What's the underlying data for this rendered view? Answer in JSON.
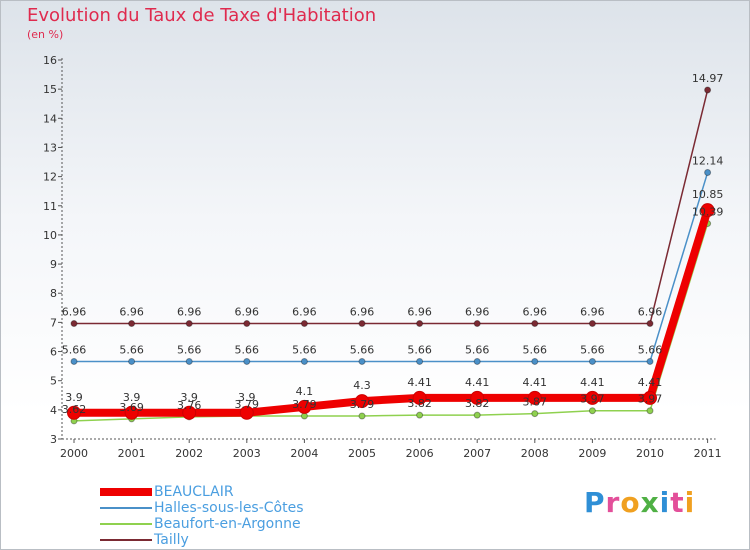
{
  "title": "Evolution du Taux de Taxe d'Habitation",
  "subtitle": "(en %)",
  "logo_text": "Proxiti",
  "chart_data": {
    "type": "line",
    "title": "Evolution du Taux de Taxe d'Habitation",
    "ylabel": "(en %)",
    "xlabel": "",
    "ylim": [
      3,
      16
    ],
    "yticks": [
      "3",
      "4",
      "5",
      "6",
      "7",
      "8",
      "9",
      "10",
      "11",
      "12",
      "13",
      "14",
      "15",
      "16"
    ],
    "categories": [
      "2000",
      "2001",
      "2002",
      "2003",
      "2004",
      "2005",
      "2006",
      "2007",
      "2008",
      "2009",
      "2010",
      "2011"
    ],
    "grid": false,
    "series": [
      {
        "name": "Tailly",
        "color": "#7b2a33",
        "values": [
          6.96,
          6.96,
          6.96,
          6.96,
          6.96,
          6.96,
          6.96,
          6.96,
          6.96,
          6.96,
          6.96,
          14.97
        ],
        "labels": [
          "6.96",
          "6.96",
          "6.96",
          "6.96",
          "6.96",
          "6.96",
          "6.96",
          "6.96",
          "6.96",
          "6.96",
          "6.96",
          "14.97"
        ]
      },
      {
        "name": "Halles-sous-les-Côtes",
        "color": "#4a90c8",
        "values": [
          5.66,
          5.66,
          5.66,
          5.66,
          5.66,
          5.66,
          5.66,
          5.66,
          5.66,
          5.66,
          5.66,
          12.14
        ],
        "labels": [
          "5.66",
          "5.66",
          "5.66",
          "5.66",
          "5.66",
          "5.66",
          "5.66",
          "5.66",
          "5.66",
          "5.66",
          "5.66",
          "12.14"
        ]
      },
      {
        "name": "Beaufort-en-Argonne",
        "color": "#8fd14f",
        "values": [
          3.62,
          3.69,
          3.76,
          3.79,
          3.79,
          3.79,
          3.82,
          3.82,
          3.87,
          3.97,
          3.97,
          10.39
        ],
        "labels": [
          "3.62",
          "3.69",
          "3.76",
          "3.79",
          "3.79",
          "3.79",
          "3.82",
          "3.82",
          "3.87",
          "3.97",
          "3.97",
          "10.39"
        ]
      },
      {
        "name": "BEAUCLAIR",
        "color": "#ee0000",
        "values": [
          3.9,
          3.9,
          3.9,
          3.9,
          4.1,
          4.3,
          4.41,
          4.41,
          4.41,
          4.41,
          4.41,
          10.85
        ],
        "labels": [
          "3.9",
          "3.9",
          "3.9",
          "3.9",
          "4.1",
          "4.3",
          "4.41",
          "4.41",
          "4.41",
          "4.41",
          "4.41",
          "10.85"
        ]
      }
    ],
    "legend": {
      "position": "bottom-left",
      "entries": [
        "BEAUCLAIR",
        "Halles-sous-les-Côtes",
        "Beaufort-en-Argonne",
        "Tailly"
      ]
    }
  },
  "colors": {
    "title": "#df2a4e",
    "legend_text": "#4a9ee0",
    "axis": "#555555"
  }
}
